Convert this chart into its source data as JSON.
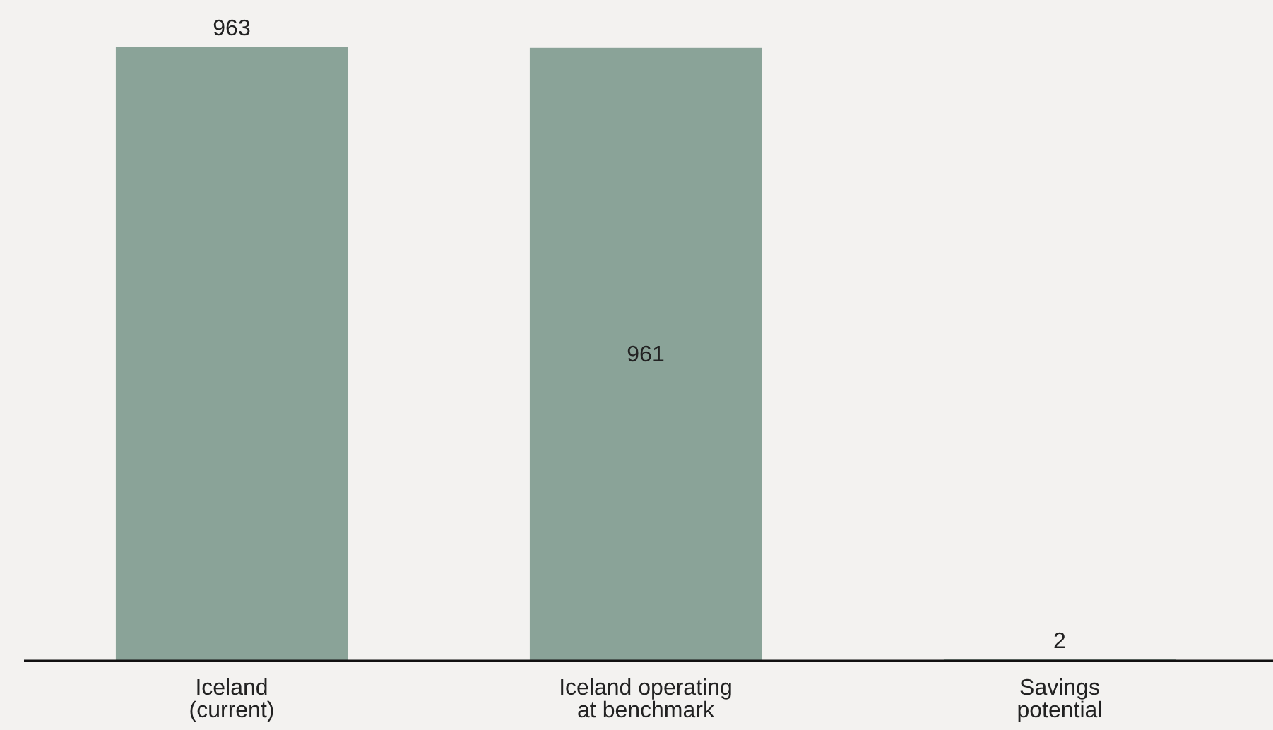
{
  "chart_data": {
    "type": "bar",
    "categories": [
      "Iceland\n(current)",
      "Iceland operating\nat benchmark",
      "Savings\npotential"
    ],
    "values": [
      963,
      961,
      2
    ],
    "color": "#8aa398",
    "data_labels": true
  }
}
